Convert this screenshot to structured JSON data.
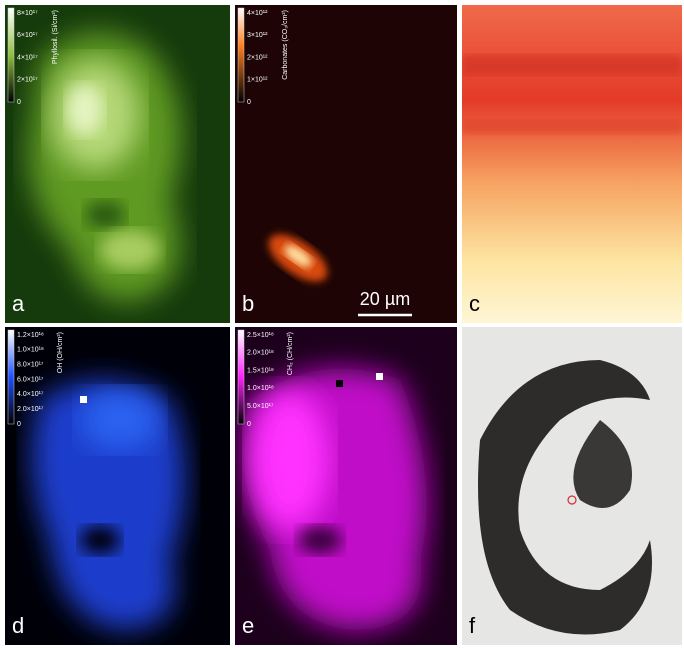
{
  "panels": [
    {
      "label": "a",
      "colorbar": {
        "title": "Phyllosil. (Si/cm²)",
        "ticks": [
          "8×10¹⁷",
          "6×10¹⁷",
          "4×10¹⁷",
          "2×10¹⁷",
          "0"
        ]
      }
    },
    {
      "label": "b",
      "colorbar": {
        "title": "Carbonates (CO₃/cm²)",
        "ticks": [
          "4×10¹²",
          "3×10¹²",
          "2×10¹²",
          "1×10¹²",
          "0"
        ]
      }
    },
    {
      "label": "c"
    },
    {
      "label": "d",
      "colorbar": {
        "title": "OH (OH/cm²)",
        "ticks": [
          "1.2×10¹⁸",
          "1.0×10¹⁸",
          "8.0×10¹⁷",
          "6.0×10¹⁷",
          "4.0×10¹⁷",
          "2.0×10¹⁷",
          "0"
        ]
      }
    },
    {
      "label": "e",
      "colorbar": {
        "title": "CH₂ (CH/cm²)",
        "ticks": [
          "2.5×10¹⁸",
          "2.0×10¹⁸",
          "1.5×10¹⁸",
          "1.0×10¹⁸",
          "5.0×10¹⁷",
          "0"
        ]
      }
    },
    {
      "label": "f"
    }
  ],
  "scale_bar": "20 µm"
}
